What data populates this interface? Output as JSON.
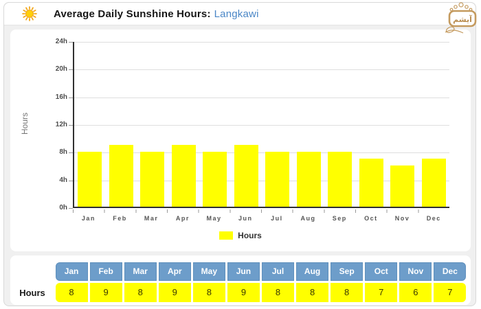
{
  "header": {
    "title": "Average Daily Sunshine Hours:",
    "location": "Langkawi"
  },
  "watermark": {
    "text": "آیشم"
  },
  "chart_data": {
    "type": "bar",
    "title": "Average Daily Sunshine Hours: Langkawi",
    "categories": [
      "Jan",
      "Feb",
      "Mar",
      "Apr",
      "May",
      "Jun",
      "Jul",
      "Aug",
      "Sep",
      "Oct",
      "Nov",
      "Dec"
    ],
    "values": [
      8,
      9,
      8,
      9,
      8,
      9,
      8,
      8,
      8,
      7,
      6,
      7
    ],
    "ylabel": "Hours",
    "xlabel": "",
    "ylim": [
      0,
      24
    ],
    "yticks": [
      "24h",
      "20h",
      "16h",
      "12h",
      "8h",
      "4h",
      "0h"
    ],
    "grid": true,
    "legend": {
      "label": "Hours",
      "position": "bottom"
    },
    "bar_color": "#ffff00"
  },
  "table": {
    "row_label": "Hours",
    "columns": [
      "Jan",
      "Feb",
      "Mar",
      "Apr",
      "May",
      "Jun",
      "Jul",
      "Aug",
      "Sep",
      "Oct",
      "Nov",
      "Dec"
    ],
    "values": [
      "8",
      "9",
      "8",
      "9",
      "8",
      "9",
      "8",
      "8",
      "8",
      "7",
      "6",
      "7"
    ],
    "header_bg": "#6d9dca",
    "value_bg": "#ffff00"
  },
  "colors": {
    "accent_blue": "#4a86c6",
    "axis_dark": "#2f2f2f",
    "grid_gray": "#dedede",
    "bar_yellow": "#ffff00",
    "table_header_blue": "#6d9dca",
    "logo_gold": "#c49a5e"
  }
}
